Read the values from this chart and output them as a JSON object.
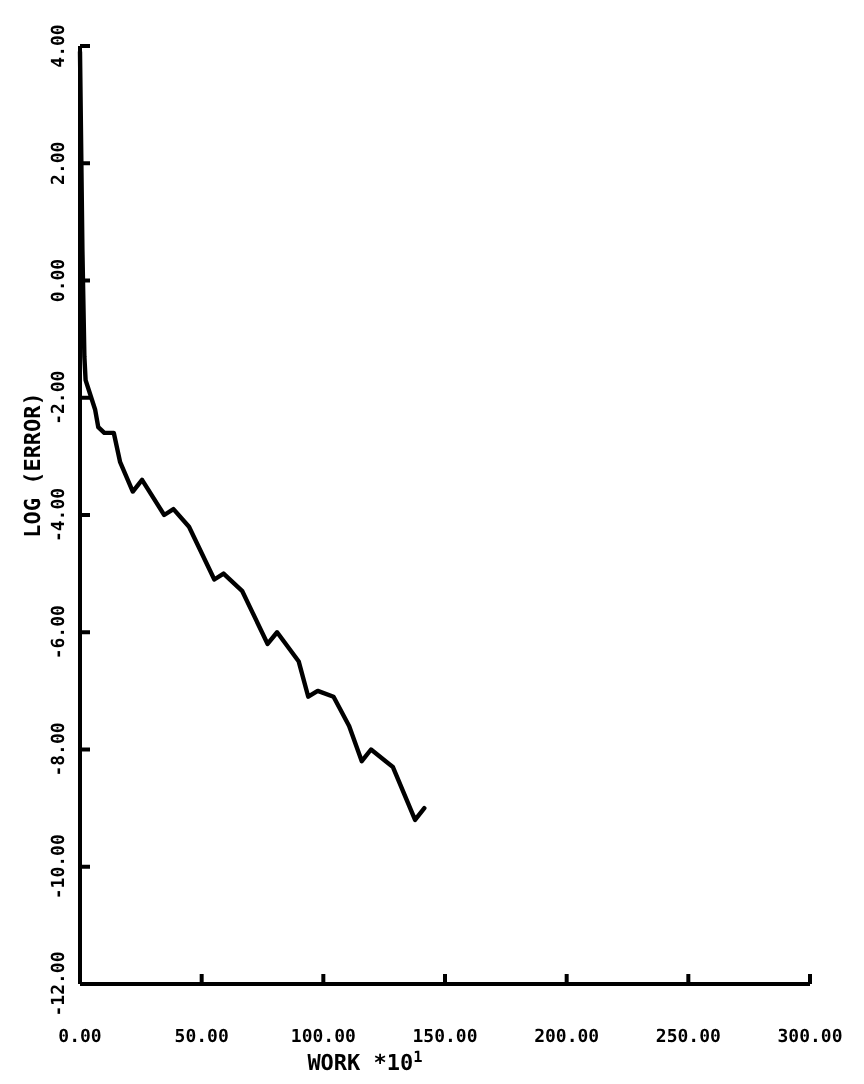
{
  "chart_data": {
    "type": "line",
    "xlabel": "WORK *10$^{1}$",
    "ylabel": "LOG (ERROR)",
    "xlim": [
      0,
      300
    ],
    "xticks": [
      {
        "value": 0,
        "label": "0.00"
      },
      {
        "value": 50,
        "label": "50.00"
      },
      {
        "value": 100,
        "label": "100.00"
      },
      {
        "value": 150,
        "label": "150.00"
      },
      {
        "value": 200,
        "label": "200.00"
      },
      {
        "value": 250,
        "label": "250.00"
      },
      {
        "value": 300,
        "label": "300.00"
      }
    ],
    "ylim": [
      -12,
      4
    ],
    "yticks": [
      {
        "value": 4,
        "label": "4.00"
      },
      {
        "value": 2,
        "label": "2.00"
      },
      {
        "value": 0,
        "label": "0.00"
      },
      {
        "value": -2,
        "label": "-2.00"
      },
      {
        "value": -4,
        "label": "-4.00"
      },
      {
        "value": -6,
        "label": "-6.00"
      },
      {
        "value": -8,
        "label": "-8.00"
      },
      {
        "value": -10,
        "label": "-10.00"
      },
      {
        "value": -12,
        "label": "-12.00"
      }
    ],
    "grid": false,
    "marker": "none",
    "line_style": "solid",
    "series": [
      {
        "color": "#000000",
        "x": [
          0,
          1,
          1.8,
          2.3,
          6.2,
          7.5,
          10,
          13.9,
          16.5,
          21.7,
          25.5,
          34.6,
          38.4,
          44.8,
          55.2,
          59,
          66.7,
          77.1,
          81,
          89.9,
          93.8,
          97.7,
          104.2,
          110.6,
          115.8,
          119.6,
          128.6,
          137.7,
          141.5
        ],
        "values": [
          3.9,
          0.5,
          -1.3,
          -1.7,
          -2.2,
          -2.5,
          -2.6,
          -2.6,
          -3.1,
          -3.6,
          -3.4,
          -4.0,
          -3.9,
          -4.2,
          -5.1,
          -5.0,
          -5.3,
          -6.2,
          -6.0,
          -6.5,
          -7.1,
          -7.0,
          -7.1,
          -7.6,
          -8.2,
          -8.0,
          -8.3,
          -9.2,
          -9.0
        ]
      }
    ]
  }
}
